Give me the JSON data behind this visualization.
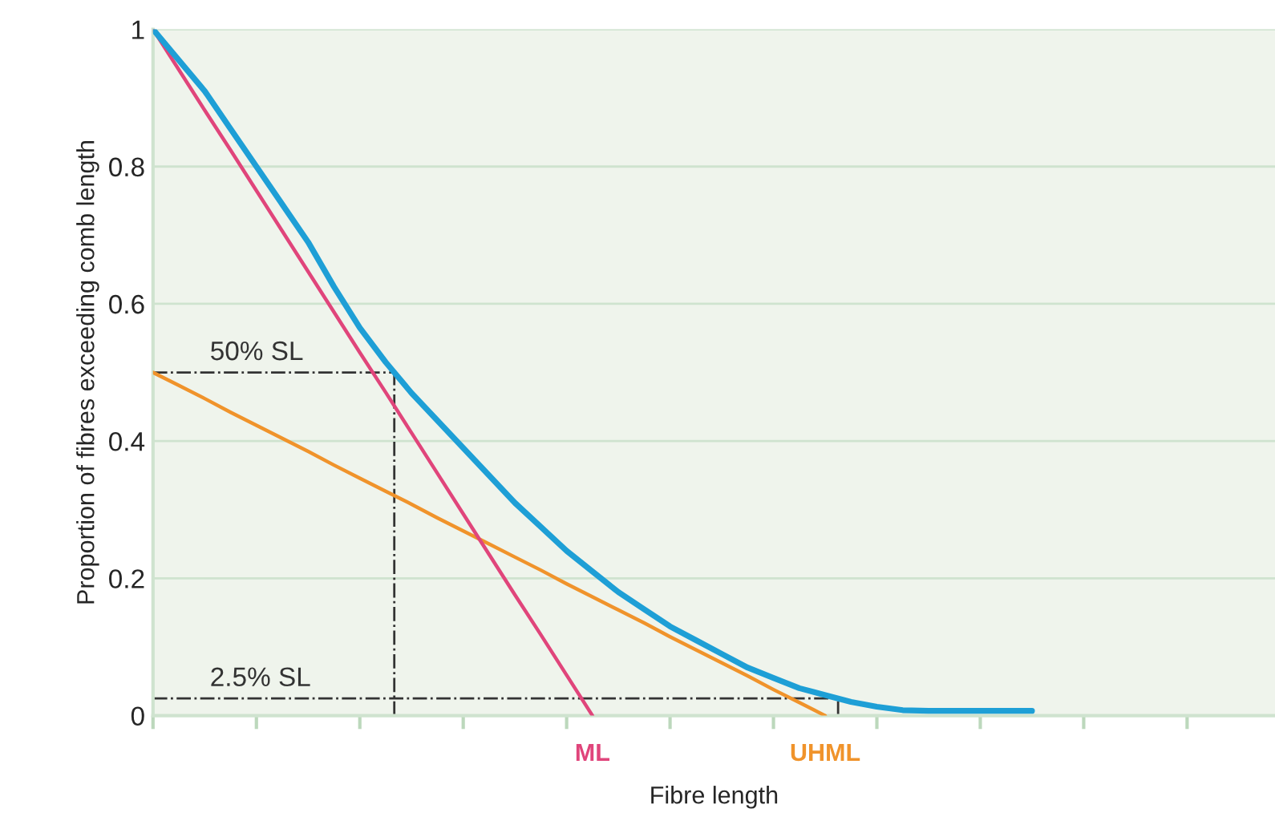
{
  "chart_data": {
    "type": "line",
    "xlabel": "Fibre length",
    "ylabel": "Proportion of fibres exceeding comb length",
    "categories": [
      null,
      null,
      null,
      null,
      null,
      null,
      null,
      null,
      null,
      null,
      null,
      null,
      null,
      null,
      null,
      null,
      null,
      null,
      null,
      null,
      null,
      null,
      null,
      null,
      null,
      null,
      null,
      null,
      null,
      null,
      null,
      null,
      null,
      null,
      null,
      null,
      null,
      null,
      null,
      null,
      null,
      null,
      null,
      null
    ],
    "series": [
      {
        "color": "#1e9fd6",
        "values": [
          1.0,
          0.955,
          0.91,
          0.855,
          0.8,
          0.745,
          0.69,
          0.625,
          0.565,
          0.515,
          0.47,
          0.43,
          0.39,
          0.35,
          0.31,
          0.275,
          0.24,
          0.21,
          0.18,
          0.155,
          0.13,
          0.11,
          0.09,
          0.07,
          0.055,
          0.04,
          0.03,
          0.02,
          0.013,
          0.008,
          0.007,
          0.007,
          0.007,
          0.007,
          0.007,
          null,
          null,
          null,
          null,
          null,
          null,
          null,
          null,
          null
        ]
      },
      {
        "name": "ML",
        "color": "#e0457b",
        "values": [
          1.0,
          0.941,
          0.882,
          0.824,
          0.765,
          0.706,
          0.647,
          0.588,
          0.529,
          0.471,
          0.412,
          0.353,
          0.294,
          0.235,
          0.176,
          0.118,
          0.059,
          0.0,
          null,
          null,
          null,
          null,
          null,
          null,
          null,
          null,
          null,
          null,
          null,
          null,
          null,
          null,
          null,
          null,
          null,
          null,
          null,
          null,
          null,
          null,
          null,
          null,
          null,
          null
        ]
      },
      {
        "name": "UHML",
        "color": "#f0932b",
        "values": [
          0.5,
          0.481,
          0.462,
          0.442,
          0.423,
          0.404,
          0.385,
          0.365,
          0.346,
          0.327,
          0.308,
          0.288,
          0.269,
          0.25,
          0.231,
          0.212,
          0.192,
          0.173,
          0.154,
          0.135,
          0.115,
          0.096,
          0.077,
          0.058,
          0.038,
          0.019,
          0.0,
          null,
          null,
          null,
          null,
          null,
          null,
          null,
          null,
          null,
          null,
          null,
          null,
          null,
          null,
          null,
          null,
          null
        ]
      }
    ],
    "ref_lines": [
      {
        "axis": "y",
        "value": 0.5,
        "label": "50% SL",
        "color": "#333333",
        "line_style": "dashdot"
      },
      {
        "axis": "y",
        "value": 0.025,
        "label": "2.5% SL",
        "color": "#333333",
        "line_style": "dashdot"
      }
    ],
    "ylim": [
      0,
      1
    ],
    "yticks": [
      0,
      0.2,
      0.4,
      0.6,
      0.8,
      1
    ],
    "grid": "y",
    "marker": "none",
    "line_style": "solid"
  }
}
